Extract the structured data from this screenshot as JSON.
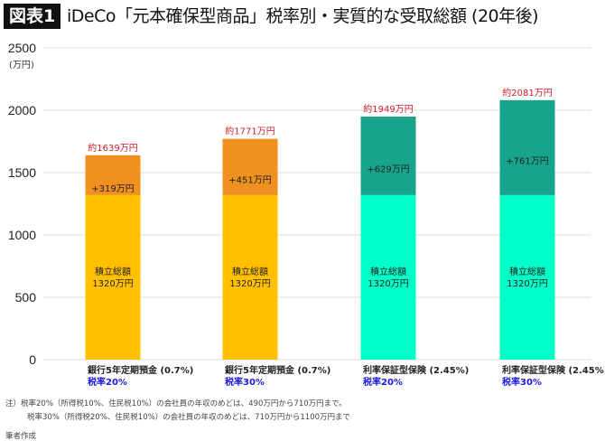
{
  "header": {
    "badge": "図表1",
    "title": "iDeCo「元本確保型商品」税率別・実質的な受取総額 (20年後)"
  },
  "chart_data": {
    "type": "bar",
    "stacked": true,
    "ylabel": "(万円)",
    "ylim": [
      0,
      2500
    ],
    "yticks": [
      0,
      500,
      1000,
      1500,
      2000,
      2500
    ],
    "grid": true,
    "categories": [
      {
        "name": "銀行5年定期預金 (0.7%)",
        "tax": "税率20%"
      },
      {
        "name": "銀行5年定期預金 (0.7%)",
        "tax": "税率30%"
      },
      {
        "name": "利率保証型保険 (2.45%)",
        "tax": "税率20%"
      },
      {
        "name": "利率保証型保険 (2.45%)",
        "tax": "税率30%"
      }
    ],
    "base": {
      "values": [
        1320,
        1320,
        1320,
        1320
      ],
      "label_line1": "積立総額",
      "label_line2": "1320万円"
    },
    "gain": {
      "values": [
        319,
        451,
        629,
        761
      ],
      "labels": [
        "+319万円",
        "+451万円",
        "+629万円",
        "+761万円"
      ]
    },
    "totals": {
      "values": [
        1639,
        1771,
        1949,
        2081
      ],
      "labels": [
        "約1639万円",
        "約1771万円",
        "約1949万円",
        "約2081万円"
      ]
    },
    "colors": {
      "base": [
        "#FFC000",
        "#FFC000",
        "#00FFC8",
        "#00FFC8"
      ],
      "gain": [
        "#F0901E",
        "#F0901E",
        "#16A58A",
        "#16A58A"
      ],
      "total_label": "#D0202A",
      "tax_label": "#1A1AE0",
      "grid": "#DDDDDD"
    }
  },
  "notes": {
    "line1": "注）税率20%（所得税10%、住民税10%）の会社員の年収のめどは、490万円から710万円まで。",
    "line2": "税率30%（所得税20%、住民税10%）の会社員の年収のめどは、710万円から1100万円まで",
    "source": "筆者作成"
  }
}
